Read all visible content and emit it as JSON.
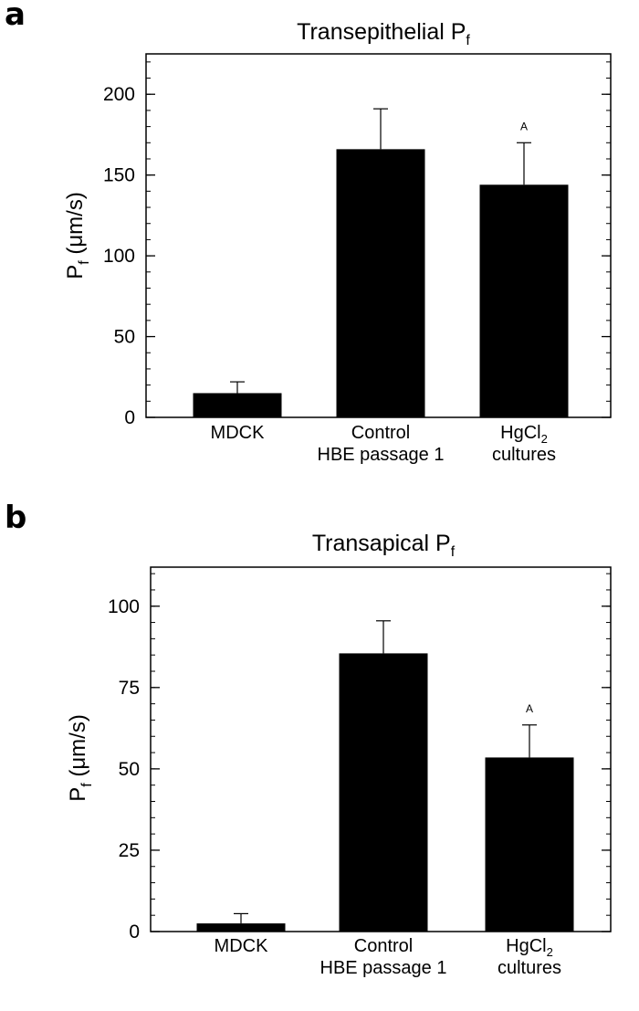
{
  "chart_data": [
    {
      "type": "bar",
      "panel_label": "a",
      "title": "Transepithelial P",
      "title_subscript": "f",
      "ylabel": "P",
      "ylabel_subscript": "f",
      "ylabel_unit": " (μm/s)",
      "xlabel": "",
      "ylim": [
        0,
        225
      ],
      "yticks": [
        0,
        50,
        100,
        150,
        200
      ],
      "ytick_labels": [
        "0",
        "50",
        "100",
        "150",
        "200"
      ],
      "minor_tick_step": 10,
      "categories": [
        {
          "lines": [
            "MDCK"
          ]
        },
        {
          "lines": [
            "Control",
            "HBE passage 1"
          ]
        },
        {
          "lines": [
            "HgCl",
            "cultures"
          ],
          "subscript": "2"
        }
      ],
      "values": [
        15,
        166,
        144
      ],
      "errors": [
        7,
        25,
        26
      ],
      "annotations": [
        "",
        "",
        "A"
      ],
      "grid": false,
      "legend": "none",
      "bar_color": "#000000"
    },
    {
      "type": "bar",
      "panel_label": "b",
      "title": "Transapical P",
      "title_subscript": "f",
      "ylabel": "P",
      "ylabel_subscript": "f",
      "ylabel_unit": " (μm/s)",
      "xlabel": "",
      "ylim": [
        0,
        112
      ],
      "yticks": [
        0,
        25,
        50,
        75,
        100
      ],
      "ytick_labels": [
        "0",
        "25",
        "50",
        "75",
        "100"
      ],
      "minor_tick_step": 5,
      "categories": [
        {
          "lines": [
            "MDCK"
          ]
        },
        {
          "lines": [
            "Control",
            "HBE passage 1"
          ]
        },
        {
          "lines": [
            "HgCl",
            "cultures"
          ],
          "subscript": "2"
        }
      ],
      "values": [
        2.5,
        85.5,
        53.5
      ],
      "errors": [
        3,
        10,
        10
      ],
      "annotations": [
        "",
        "",
        "A"
      ],
      "grid": false,
      "legend": "none",
      "bar_color": "#000000"
    }
  ]
}
